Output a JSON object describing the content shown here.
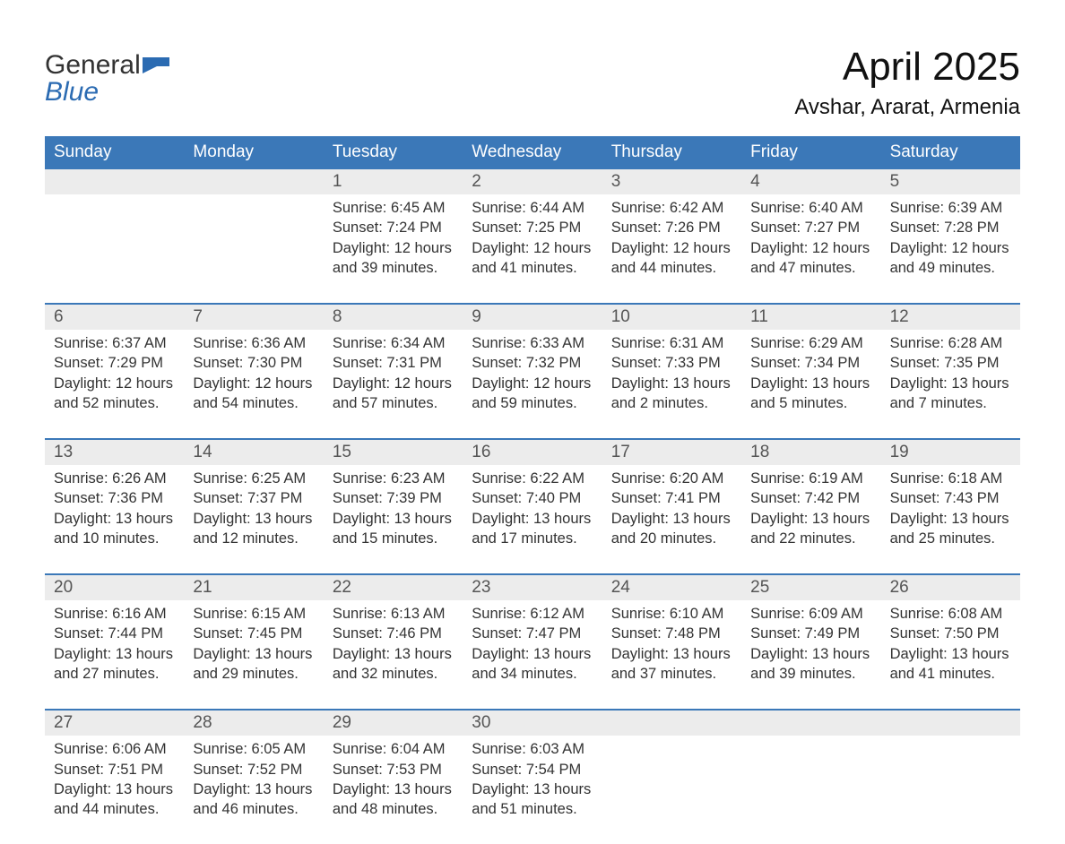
{
  "logo": {
    "line1": "General",
    "line2": "Blue",
    "flag_color": "#2b6bb2"
  },
  "title": "April 2025",
  "subtitle": "Avshar, Ararat, Armenia",
  "colors": {
    "header_bg": "#3b78b8",
    "header_fg": "#ffffff",
    "daynum_bg": "#ececec",
    "divider": "#3b78b8",
    "body_fg": "#333333",
    "logo_blue": "#2b6bb2"
  },
  "weekdays": [
    "Sunday",
    "Monday",
    "Tuesday",
    "Wednesday",
    "Thursday",
    "Friday",
    "Saturday"
  ],
  "weeks": [
    {
      "days": [
        {
          "num": "",
          "sunrise": "",
          "sunset": "",
          "daylight": ""
        },
        {
          "num": "",
          "sunrise": "",
          "sunset": "",
          "daylight": ""
        },
        {
          "num": "1",
          "sunrise": "Sunrise: 6:45 AM",
          "sunset": "Sunset: 7:24 PM",
          "daylight": "Daylight: 12 hours and 39 minutes."
        },
        {
          "num": "2",
          "sunrise": "Sunrise: 6:44 AM",
          "sunset": "Sunset: 7:25 PM",
          "daylight": "Daylight: 12 hours and 41 minutes."
        },
        {
          "num": "3",
          "sunrise": "Sunrise: 6:42 AM",
          "sunset": "Sunset: 7:26 PM",
          "daylight": "Daylight: 12 hours and 44 minutes."
        },
        {
          "num": "4",
          "sunrise": "Sunrise: 6:40 AM",
          "sunset": "Sunset: 7:27 PM",
          "daylight": "Daylight: 12 hours and 47 minutes."
        },
        {
          "num": "5",
          "sunrise": "Sunrise: 6:39 AM",
          "sunset": "Sunset: 7:28 PM",
          "daylight": "Daylight: 12 hours and 49 minutes."
        }
      ]
    },
    {
      "days": [
        {
          "num": "6",
          "sunrise": "Sunrise: 6:37 AM",
          "sunset": "Sunset: 7:29 PM",
          "daylight": "Daylight: 12 hours and 52 minutes."
        },
        {
          "num": "7",
          "sunrise": "Sunrise: 6:36 AM",
          "sunset": "Sunset: 7:30 PM",
          "daylight": "Daylight: 12 hours and 54 minutes."
        },
        {
          "num": "8",
          "sunrise": "Sunrise: 6:34 AM",
          "sunset": "Sunset: 7:31 PM",
          "daylight": "Daylight: 12 hours and 57 minutes."
        },
        {
          "num": "9",
          "sunrise": "Sunrise: 6:33 AM",
          "sunset": "Sunset: 7:32 PM",
          "daylight": "Daylight: 12 hours and 59 minutes."
        },
        {
          "num": "10",
          "sunrise": "Sunrise: 6:31 AM",
          "sunset": "Sunset: 7:33 PM",
          "daylight": "Daylight: 13 hours and 2 minutes."
        },
        {
          "num": "11",
          "sunrise": "Sunrise: 6:29 AM",
          "sunset": "Sunset: 7:34 PM",
          "daylight": "Daylight: 13 hours and 5 minutes."
        },
        {
          "num": "12",
          "sunrise": "Sunrise: 6:28 AM",
          "sunset": "Sunset: 7:35 PM",
          "daylight": "Daylight: 13 hours and 7 minutes."
        }
      ]
    },
    {
      "days": [
        {
          "num": "13",
          "sunrise": "Sunrise: 6:26 AM",
          "sunset": "Sunset: 7:36 PM",
          "daylight": "Daylight: 13 hours and 10 minutes."
        },
        {
          "num": "14",
          "sunrise": "Sunrise: 6:25 AM",
          "sunset": "Sunset: 7:37 PM",
          "daylight": "Daylight: 13 hours and 12 minutes."
        },
        {
          "num": "15",
          "sunrise": "Sunrise: 6:23 AM",
          "sunset": "Sunset: 7:39 PM",
          "daylight": "Daylight: 13 hours and 15 minutes."
        },
        {
          "num": "16",
          "sunrise": "Sunrise: 6:22 AM",
          "sunset": "Sunset: 7:40 PM",
          "daylight": "Daylight: 13 hours and 17 minutes."
        },
        {
          "num": "17",
          "sunrise": "Sunrise: 6:20 AM",
          "sunset": "Sunset: 7:41 PM",
          "daylight": "Daylight: 13 hours and 20 minutes."
        },
        {
          "num": "18",
          "sunrise": "Sunrise: 6:19 AM",
          "sunset": "Sunset: 7:42 PM",
          "daylight": "Daylight: 13 hours and 22 minutes."
        },
        {
          "num": "19",
          "sunrise": "Sunrise: 6:18 AM",
          "sunset": "Sunset: 7:43 PM",
          "daylight": "Daylight: 13 hours and 25 minutes."
        }
      ]
    },
    {
      "days": [
        {
          "num": "20",
          "sunrise": "Sunrise: 6:16 AM",
          "sunset": "Sunset: 7:44 PM",
          "daylight": "Daylight: 13 hours and 27 minutes."
        },
        {
          "num": "21",
          "sunrise": "Sunrise: 6:15 AM",
          "sunset": "Sunset: 7:45 PM",
          "daylight": "Daylight: 13 hours and 29 minutes."
        },
        {
          "num": "22",
          "sunrise": "Sunrise: 6:13 AM",
          "sunset": "Sunset: 7:46 PM",
          "daylight": "Daylight: 13 hours and 32 minutes."
        },
        {
          "num": "23",
          "sunrise": "Sunrise: 6:12 AM",
          "sunset": "Sunset: 7:47 PM",
          "daylight": "Daylight: 13 hours and 34 minutes."
        },
        {
          "num": "24",
          "sunrise": "Sunrise: 6:10 AM",
          "sunset": "Sunset: 7:48 PM",
          "daylight": "Daylight: 13 hours and 37 minutes."
        },
        {
          "num": "25",
          "sunrise": "Sunrise: 6:09 AM",
          "sunset": "Sunset: 7:49 PM",
          "daylight": "Daylight: 13 hours and 39 minutes."
        },
        {
          "num": "26",
          "sunrise": "Sunrise: 6:08 AM",
          "sunset": "Sunset: 7:50 PM",
          "daylight": "Daylight: 13 hours and 41 minutes."
        }
      ]
    },
    {
      "days": [
        {
          "num": "27",
          "sunrise": "Sunrise: 6:06 AM",
          "sunset": "Sunset: 7:51 PM",
          "daylight": "Daylight: 13 hours and 44 minutes."
        },
        {
          "num": "28",
          "sunrise": "Sunrise: 6:05 AM",
          "sunset": "Sunset: 7:52 PM",
          "daylight": "Daylight: 13 hours and 46 minutes."
        },
        {
          "num": "29",
          "sunrise": "Sunrise: 6:04 AM",
          "sunset": "Sunset: 7:53 PM",
          "daylight": "Daylight: 13 hours and 48 minutes."
        },
        {
          "num": "30",
          "sunrise": "Sunrise: 6:03 AM",
          "sunset": "Sunset: 7:54 PM",
          "daylight": "Daylight: 13 hours and 51 minutes."
        },
        {
          "num": "",
          "sunrise": "",
          "sunset": "",
          "daylight": ""
        },
        {
          "num": "",
          "sunrise": "",
          "sunset": "",
          "daylight": ""
        },
        {
          "num": "",
          "sunrise": "",
          "sunset": "",
          "daylight": ""
        }
      ]
    }
  ]
}
